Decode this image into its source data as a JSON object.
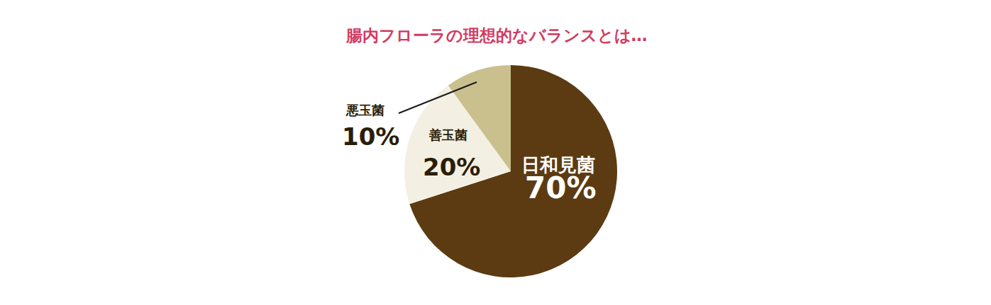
{
  "chart_data": {
    "type": "pie",
    "title": "腸内フローラの理想的なバランスとは…",
    "categories": [
      "日和見菌",
      "善玉菌",
      "悪玉菌"
    ],
    "values": [
      70,
      20,
      10
    ],
    "value_labels": [
      "70%",
      "20%",
      "10%"
    ],
    "colors": [
      "#5c3b12",
      "#f3f0e3",
      "#c9c08e"
    ],
    "data_labels": true
  }
}
